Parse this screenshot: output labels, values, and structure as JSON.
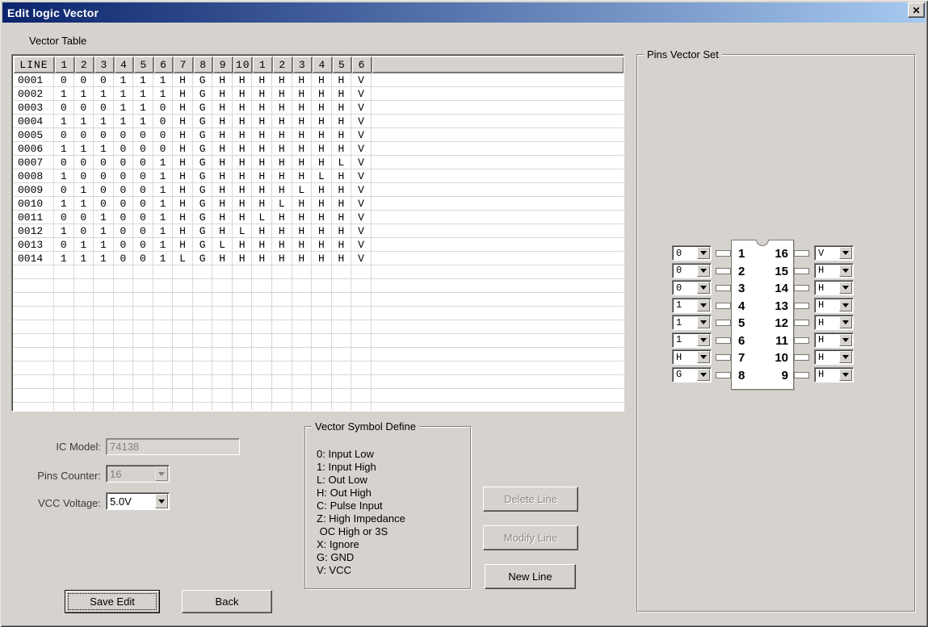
{
  "window": {
    "title": "Edit logic Vector",
    "close_glyph": "✕"
  },
  "colors": {
    "titlebar_start": "#0b246d",
    "titlebar_end": "#a6caf0",
    "dialog_bg": "#d6d3ce",
    "gridline": "#d7d7d2"
  },
  "vector_table": {
    "section_label": "Vector Table",
    "columns": [
      "LINE",
      "1",
      "2",
      "3",
      "4",
      "5",
      "6",
      "7",
      "8",
      "9",
      "10",
      "1",
      "2",
      "3",
      "4",
      "5",
      "6"
    ],
    "rows": [
      {
        "line": "0001",
        "values": [
          "0",
          "0",
          "0",
          "1",
          "1",
          "1",
          "H",
          "G",
          "H",
          "H",
          "H",
          "H",
          "H",
          "H",
          "H",
          "V"
        ]
      },
      {
        "line": "0002",
        "values": [
          "1",
          "1",
          "1",
          "1",
          "1",
          "1",
          "H",
          "G",
          "H",
          "H",
          "H",
          "H",
          "H",
          "H",
          "H",
          "V"
        ]
      },
      {
        "line": "0003",
        "values": [
          "0",
          "0",
          "0",
          "1",
          "1",
          "0",
          "H",
          "G",
          "H",
          "H",
          "H",
          "H",
          "H",
          "H",
          "H",
          "V"
        ]
      },
      {
        "line": "0004",
        "values": [
          "1",
          "1",
          "1",
          "1",
          "1",
          "0",
          "H",
          "G",
          "H",
          "H",
          "H",
          "H",
          "H",
          "H",
          "H",
          "V"
        ]
      },
      {
        "line": "0005",
        "values": [
          "0",
          "0",
          "0",
          "0",
          "0",
          "0",
          "H",
          "G",
          "H",
          "H",
          "H",
          "H",
          "H",
          "H",
          "H",
          "V"
        ]
      },
      {
        "line": "0006",
        "values": [
          "1",
          "1",
          "1",
          "0",
          "0",
          "0",
          "H",
          "G",
          "H",
          "H",
          "H",
          "H",
          "H",
          "H",
          "H",
          "V"
        ]
      },
      {
        "line": "0007",
        "values": [
          "0",
          "0",
          "0",
          "0",
          "0",
          "1",
          "H",
          "G",
          "H",
          "H",
          "H",
          "H",
          "H",
          "H",
          "L",
          "V"
        ]
      },
      {
        "line": "0008",
        "values": [
          "1",
          "0",
          "0",
          "0",
          "0",
          "1",
          "H",
          "G",
          "H",
          "H",
          "H",
          "H",
          "H",
          "L",
          "H",
          "V"
        ]
      },
      {
        "line": "0009",
        "values": [
          "0",
          "1",
          "0",
          "0",
          "0",
          "1",
          "H",
          "G",
          "H",
          "H",
          "H",
          "H",
          "L",
          "H",
          "H",
          "V"
        ]
      },
      {
        "line": "0010",
        "values": [
          "1",
          "1",
          "0",
          "0",
          "0",
          "1",
          "H",
          "G",
          "H",
          "H",
          "H",
          "L",
          "H",
          "H",
          "H",
          "V"
        ]
      },
      {
        "line": "0011",
        "values": [
          "0",
          "0",
          "1",
          "0",
          "0",
          "1",
          "H",
          "G",
          "H",
          "H",
          "L",
          "H",
          "H",
          "H",
          "H",
          "V"
        ]
      },
      {
        "line": "0012",
        "values": [
          "1",
          "0",
          "1",
          "0",
          "0",
          "1",
          "H",
          "G",
          "H",
          "L",
          "H",
          "H",
          "H",
          "H",
          "H",
          "V"
        ]
      },
      {
        "line": "0013",
        "values": [
          "0",
          "1",
          "1",
          "0",
          "0",
          "1",
          "H",
          "G",
          "L",
          "H",
          "H",
          "H",
          "H",
          "H",
          "H",
          "V"
        ]
      },
      {
        "line": "0014",
        "values": [
          "1",
          "1",
          "1",
          "0",
          "0",
          "1",
          "L",
          "G",
          "H",
          "H",
          "H",
          "H",
          "H",
          "H",
          "H",
          "V"
        ]
      }
    ],
    "empty_row_count": 11
  },
  "pins_vector_set": {
    "label": "Pins Vector Set",
    "left_pins": [
      {
        "pin": "1",
        "value": "0"
      },
      {
        "pin": "2",
        "value": "0"
      },
      {
        "pin": "3",
        "value": "0"
      },
      {
        "pin": "4",
        "value": "1"
      },
      {
        "pin": "5",
        "value": "1"
      },
      {
        "pin": "6",
        "value": "1"
      },
      {
        "pin": "7",
        "value": "H"
      },
      {
        "pin": "8",
        "value": "G"
      }
    ],
    "right_pins": [
      {
        "pin": "16",
        "value": "V"
      },
      {
        "pin": "15",
        "value": "H"
      },
      {
        "pin": "14",
        "value": "H"
      },
      {
        "pin": "13",
        "value": "H"
      },
      {
        "pin": "12",
        "value": "H"
      },
      {
        "pin": "11",
        "value": "H"
      },
      {
        "pin": "10",
        "value": "H"
      },
      {
        "pin": "9",
        "value": "H"
      }
    ]
  },
  "settings": {
    "ic_model_label": "IC Model:",
    "ic_model_value": "74138",
    "pins_counter_label": "Pins Counter:",
    "pins_counter_value": "16",
    "vcc_voltage_label": "VCC Voltage:",
    "vcc_voltage_value": "5.0V"
  },
  "symbol_define": {
    "label": "Vector Symbol Define",
    "items": [
      "0: Input Low",
      "1: Input High",
      "L: Out Low",
      "H: Out High",
      "C: Pulse Input",
      "Z: High Impedance",
      " OC High or 3S",
      "X: Ignore",
      "G: GND",
      "V: VCC"
    ]
  },
  "line_buttons": {
    "delete_label": "Delete Line",
    "modify_label": "Modify Line",
    "new_label": "New Line"
  },
  "footer_buttons": {
    "save_label": "Save Edit",
    "back_label": "Back"
  }
}
